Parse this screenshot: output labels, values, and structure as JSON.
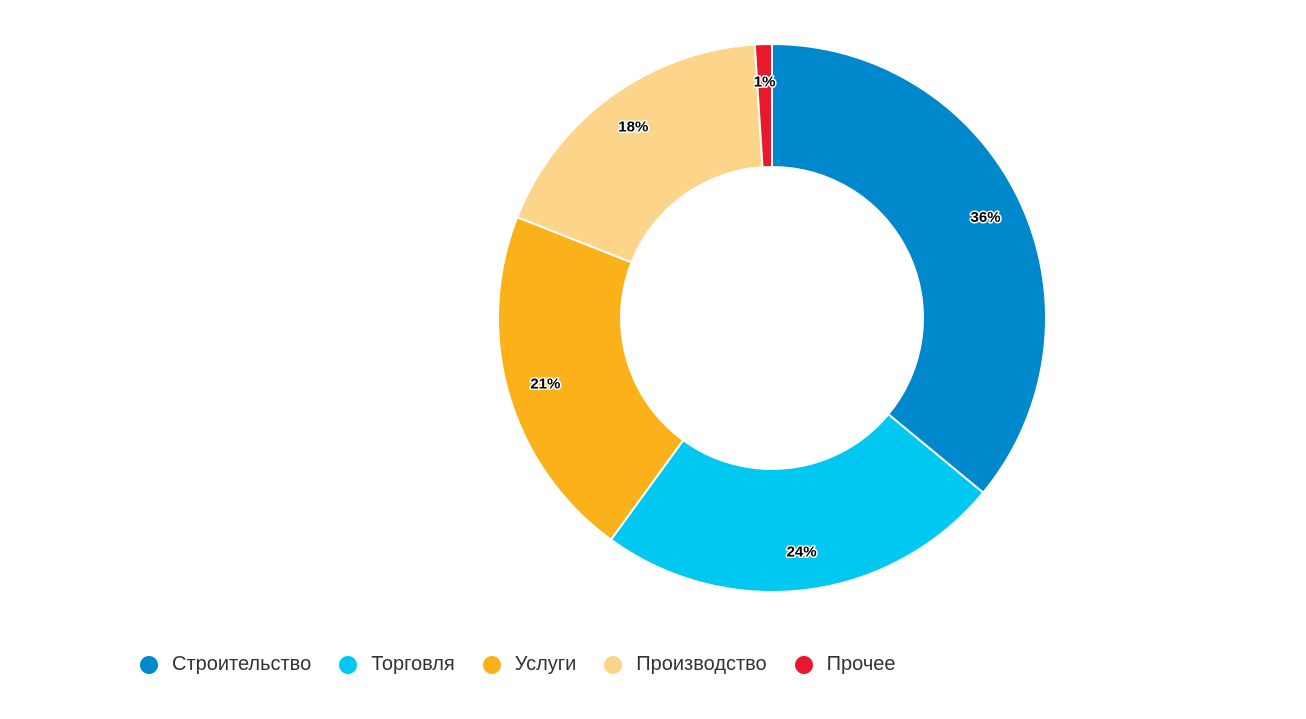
{
  "chart_data": {
    "type": "pie",
    "donut": true,
    "categories": [
      "Строительство",
      "Торговля",
      "Услуги",
      "Производство",
      "Прочее"
    ],
    "values": [
      36,
      24,
      21,
      18,
      1
    ],
    "value_labels": [
      "36%",
      "24%",
      "21%",
      "18%",
      "1%"
    ],
    "colors": [
      "#0088cc",
      "#00c8f0",
      "#fbb21a",
      "#fdd58a",
      "#e8192c"
    ],
    "start_angle_deg": 0,
    "direction": "clockwise",
    "legend_position": "bottom-left",
    "title": ""
  }
}
